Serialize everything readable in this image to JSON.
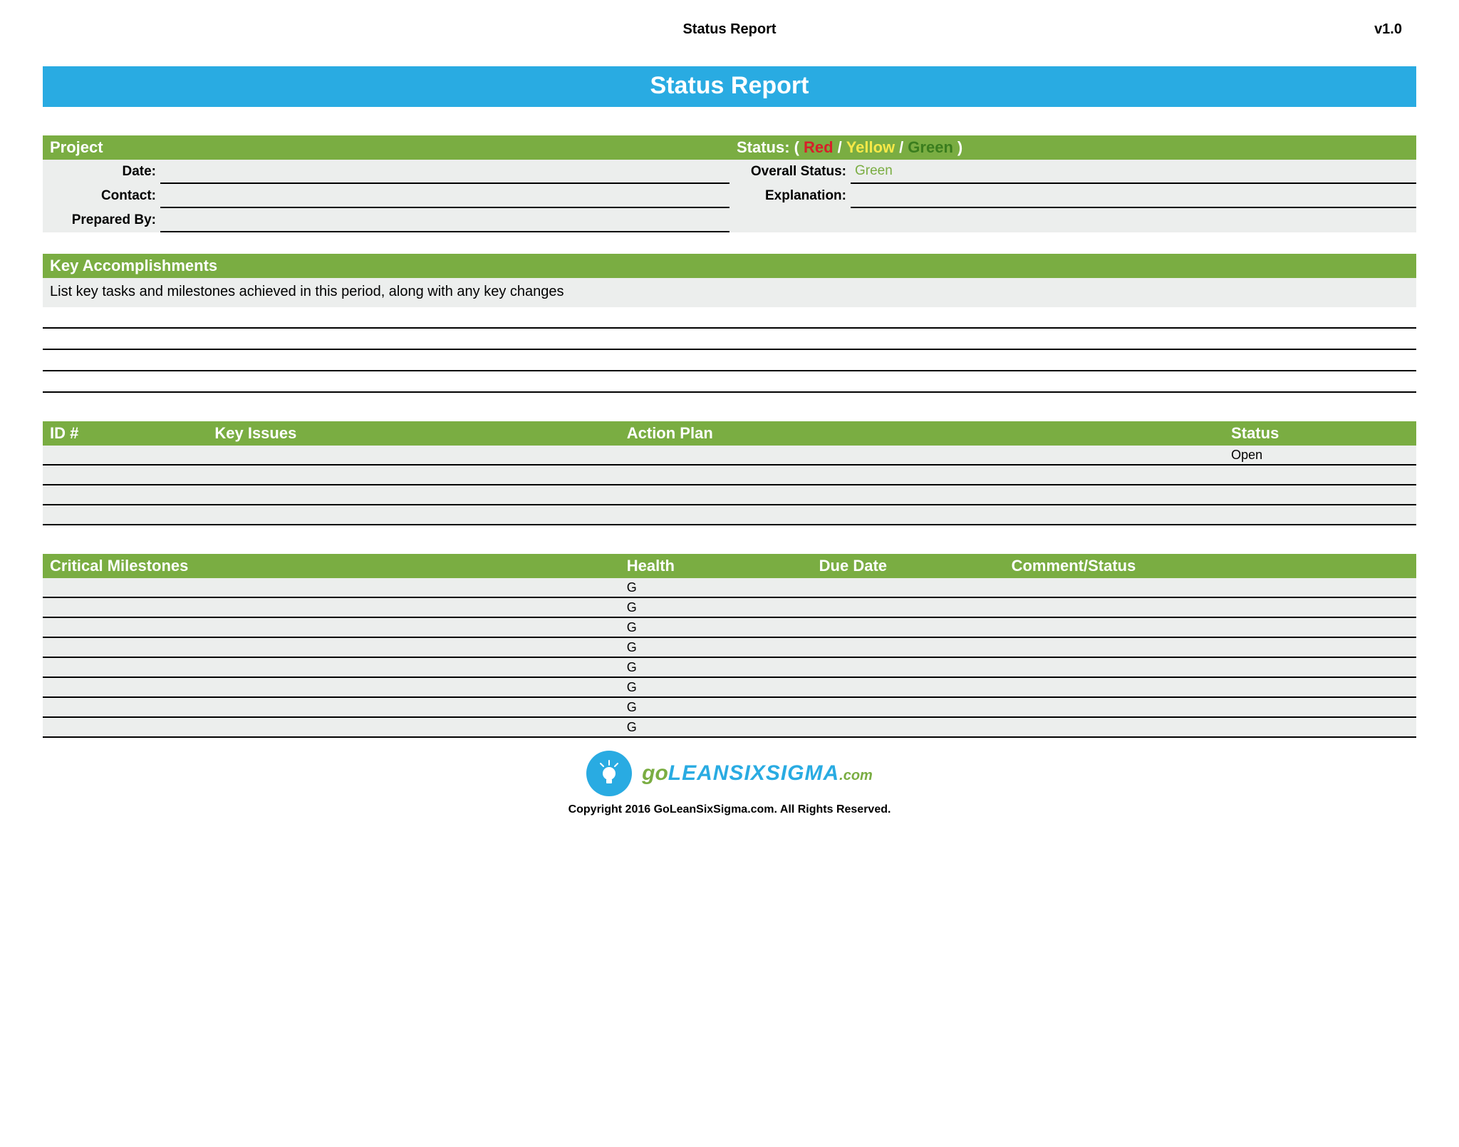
{
  "header": {
    "title": "Status Report",
    "version": "v1.0"
  },
  "banner": {
    "title": "Status Report"
  },
  "colors": {
    "banner_bg": "#29abe2",
    "section_bg": "#7aad42",
    "row_bg": "#eceeed",
    "red": "#d6202a",
    "yellow": "#f7e948",
    "green": "#3a7d1e"
  },
  "project": {
    "heading": "Project",
    "fields": {
      "date_label": "Date:",
      "contact_label": "Contact:",
      "prepared_by_label": "Prepared By:"
    }
  },
  "status": {
    "heading_prefix": "Status: (",
    "red": "Red",
    "sep1": "/",
    "yellow": "Yellow",
    "sep2": "/",
    "green": "Green",
    "heading_suffix": ")",
    "overall_label": "Overall Status:",
    "overall_value": "Green",
    "explanation_label": "Explanation:"
  },
  "accomplishments": {
    "heading": "Key Accomplishments",
    "description": "List key tasks and milestones achieved in this period, along with any key changes",
    "blank_rows": 4
  },
  "issues": {
    "columns": {
      "id": "ID #",
      "key_issues": "Key Issues",
      "action_plan": "Action Plan",
      "status": "Status"
    },
    "rows": [
      {
        "id": "",
        "key_issues": "",
        "action_plan": "",
        "status": "Open"
      },
      {
        "id": "",
        "key_issues": "",
        "action_plan": "",
        "status": ""
      },
      {
        "id": "",
        "key_issues": "",
        "action_plan": "",
        "status": ""
      },
      {
        "id": "",
        "key_issues": "",
        "action_plan": "",
        "status": ""
      }
    ]
  },
  "milestones": {
    "columns": {
      "critical": "Critical Milestones",
      "health": "Health",
      "due": "Due Date",
      "comment": "Comment/Status"
    },
    "rows": [
      {
        "critical": "",
        "health": "G",
        "due": "",
        "comment": ""
      },
      {
        "critical": "",
        "health": "G",
        "due": "",
        "comment": ""
      },
      {
        "critical": "",
        "health": "G",
        "due": "",
        "comment": ""
      },
      {
        "critical": "",
        "health": "G",
        "due": "",
        "comment": ""
      },
      {
        "critical": "",
        "health": "G",
        "due": "",
        "comment": ""
      },
      {
        "critical": "",
        "health": "G",
        "due": "",
        "comment": ""
      },
      {
        "critical": "",
        "health": "G",
        "due": "",
        "comment": ""
      },
      {
        "critical": "",
        "health": "G",
        "due": "",
        "comment": ""
      }
    ]
  },
  "footer": {
    "logo_go": "go",
    "logo_lean": "LEANSIXSIGMA",
    "logo_com": ".com",
    "copyright": "Copyright 2016 GoLeanSixSigma.com. All Rights Reserved."
  }
}
